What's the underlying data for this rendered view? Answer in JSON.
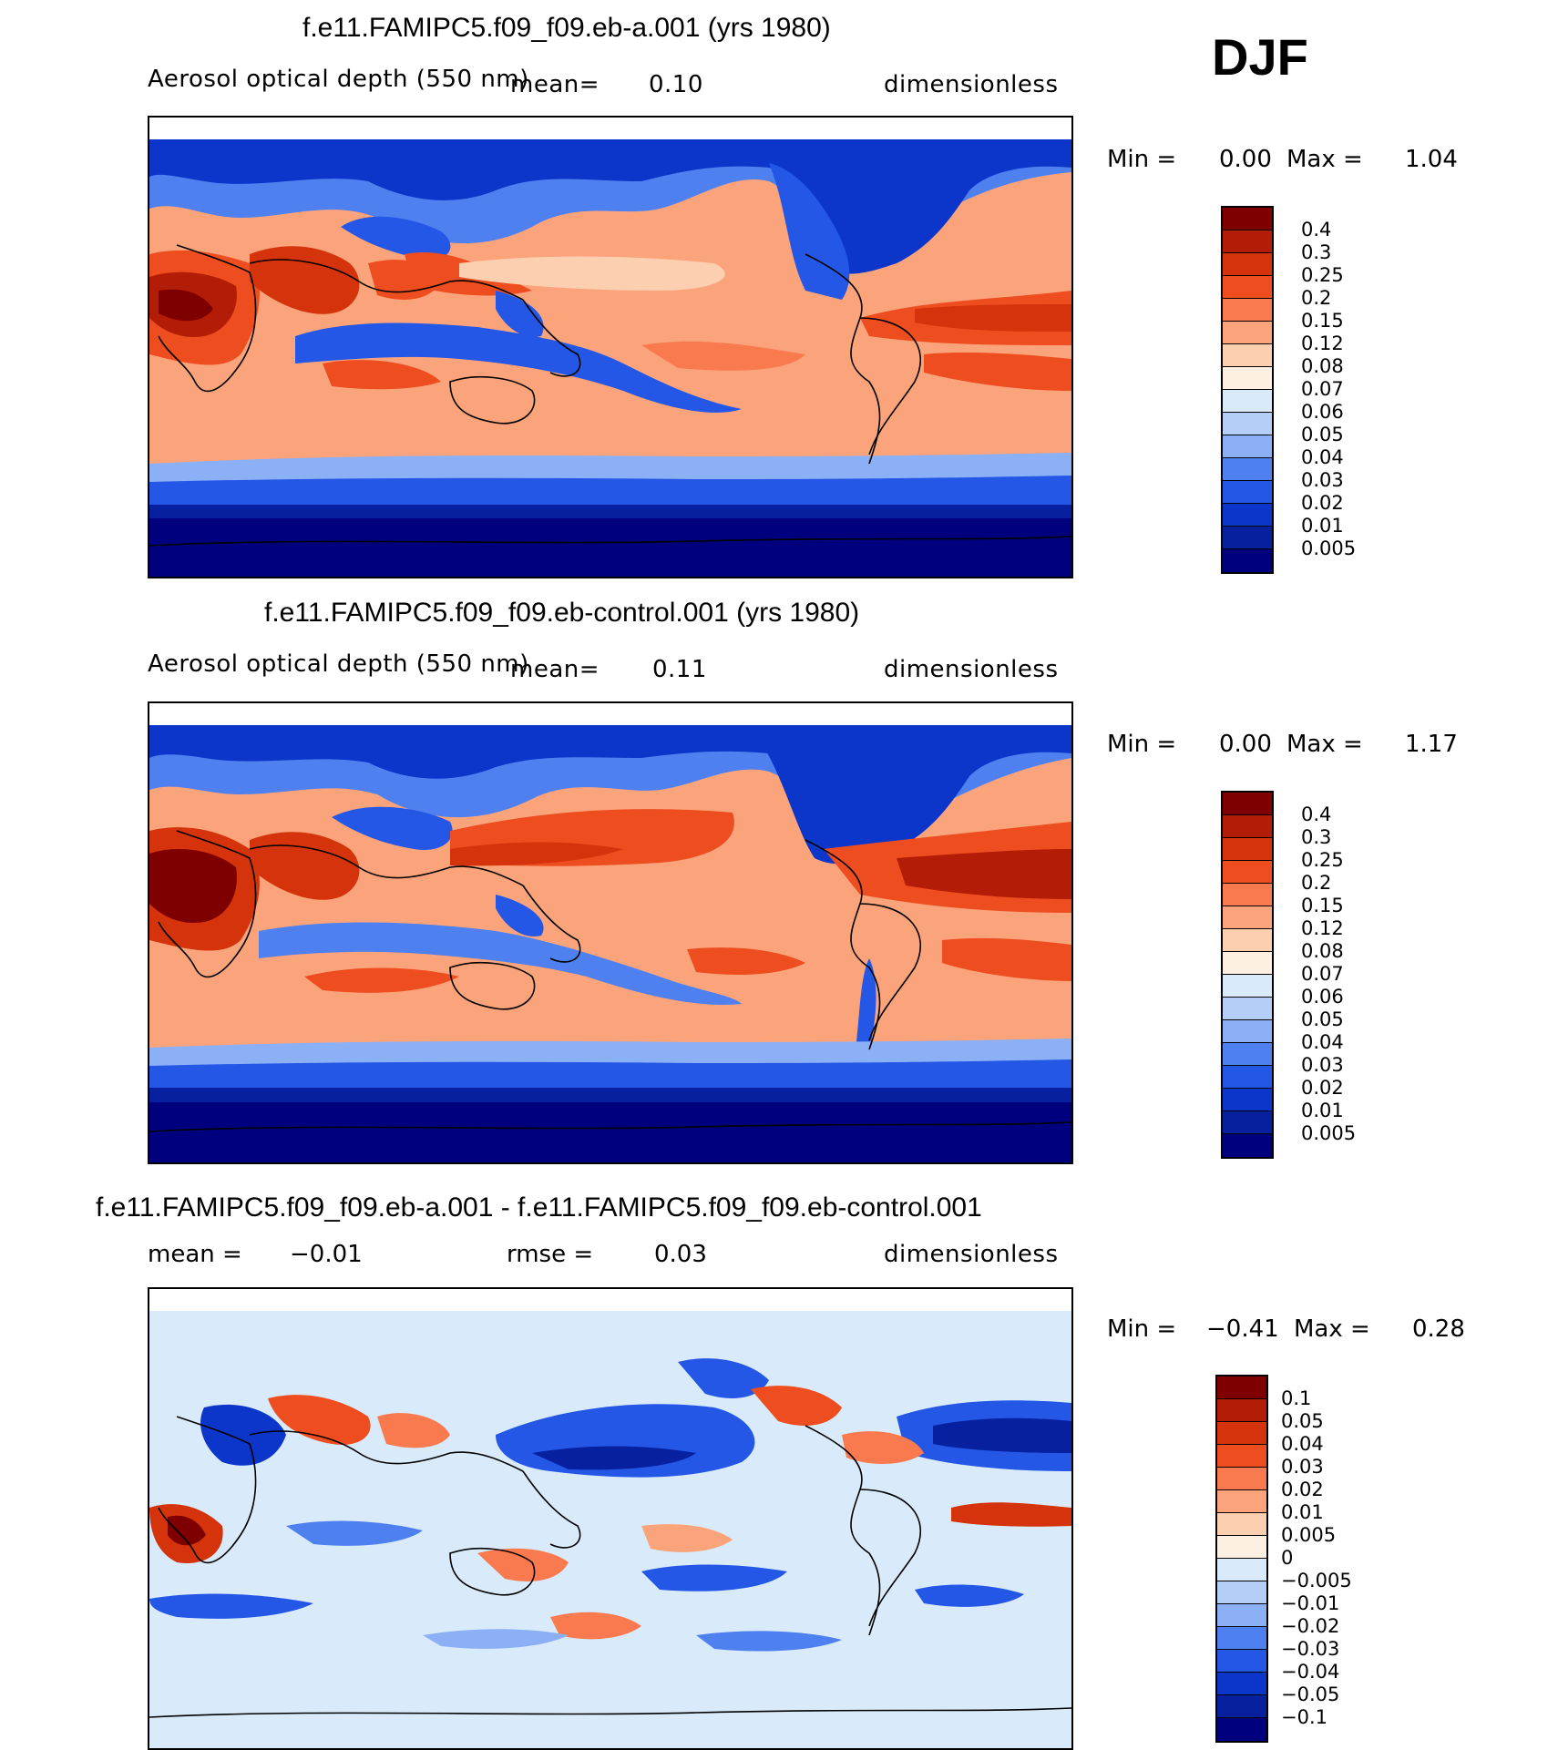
{
  "season": "DJF",
  "panels": [
    {
      "id": "a",
      "title": "f.e11.FAMIPC5.f09_f09.eb-a.001 (yrs 1980)",
      "variable": "Aerosol optical depth (550 nm)",
      "mean_label": "mean=",
      "mean_value": "0.10",
      "units": "dimensionless",
      "min_label": "Min =",
      "min_value": "0.00",
      "max_label": "Max =",
      "max_value": "1.04",
      "colorbar": {
        "levels": [
          "0.4",
          "0.3",
          "0.25",
          "0.2",
          "0.15",
          "0.12",
          "0.08",
          "0.07",
          "0.06",
          "0.05",
          "0.04",
          "0.03",
          "0.02",
          "0.01",
          "0.005"
        ],
        "colors": [
          "#7f0000",
          "#b31c06",
          "#d4330b",
          "#ee4d1f",
          "#f97a4f",
          "#fba47c",
          "#fdcfb1",
          "#fdf0e2",
          "#d9ebfb",
          "#b3cef7",
          "#8cb0f5",
          "#4f80ef",
          "#2457e6",
          "#0b36c9",
          "#06209f",
          "#00007f"
        ]
      }
    },
    {
      "id": "control",
      "title": "f.e11.FAMIPC5.f09_f09.eb-control.001 (yrs 1980)",
      "variable": "Aerosol optical depth (550 nm)",
      "mean_label": "mean=",
      "mean_value": "0.11",
      "units": "dimensionless",
      "min_label": "Min =",
      "min_value": "0.00",
      "max_label": "Max =",
      "max_value": "1.17",
      "colorbar": {
        "levels": [
          "0.4",
          "0.3",
          "0.25",
          "0.2",
          "0.15",
          "0.12",
          "0.08",
          "0.07",
          "0.06",
          "0.05",
          "0.04",
          "0.03",
          "0.02",
          "0.01",
          "0.005"
        ],
        "colors": [
          "#7f0000",
          "#b31c06",
          "#d4330b",
          "#ee4d1f",
          "#f97a4f",
          "#fba47c",
          "#fdcfb1",
          "#fdf0e2",
          "#d9ebfb",
          "#b3cef7",
          "#8cb0f5",
          "#4f80ef",
          "#2457e6",
          "#0b36c9",
          "#06209f",
          "#00007f"
        ]
      }
    },
    {
      "id": "diff",
      "title": "f.e11.FAMIPC5.f09_f09.eb-a.001 - f.e11.FAMIPC5.f09_f09.eb-control.001",
      "mean_label": "mean =",
      "mean_value": "−0.01",
      "rmse_label": "rmse =",
      "rmse_value": "0.03",
      "units": "dimensionless",
      "min_label": "Min =",
      "min_value": "−0.41",
      "max_label": "Max =",
      "max_value": "0.28",
      "colorbar": {
        "levels": [
          "0.1",
          "0.05",
          "0.04",
          "0.03",
          "0.02",
          "0.01",
          "0.005",
          "0",
          "−0.005",
          "−0.01",
          "−0.02",
          "−0.03",
          "−0.04",
          "−0.05",
          "−0.1"
        ],
        "colors": [
          "#7f0000",
          "#b31c06",
          "#d4330b",
          "#ee4d1f",
          "#f97a4f",
          "#fba47c",
          "#fdcfb1",
          "#fdf0e2",
          "#d9ebfb",
          "#b3cef7",
          "#8cb0f5",
          "#4f80ef",
          "#2457e6",
          "#0b36c9",
          "#06209f",
          "#00007f"
        ]
      }
    }
  ]
}
